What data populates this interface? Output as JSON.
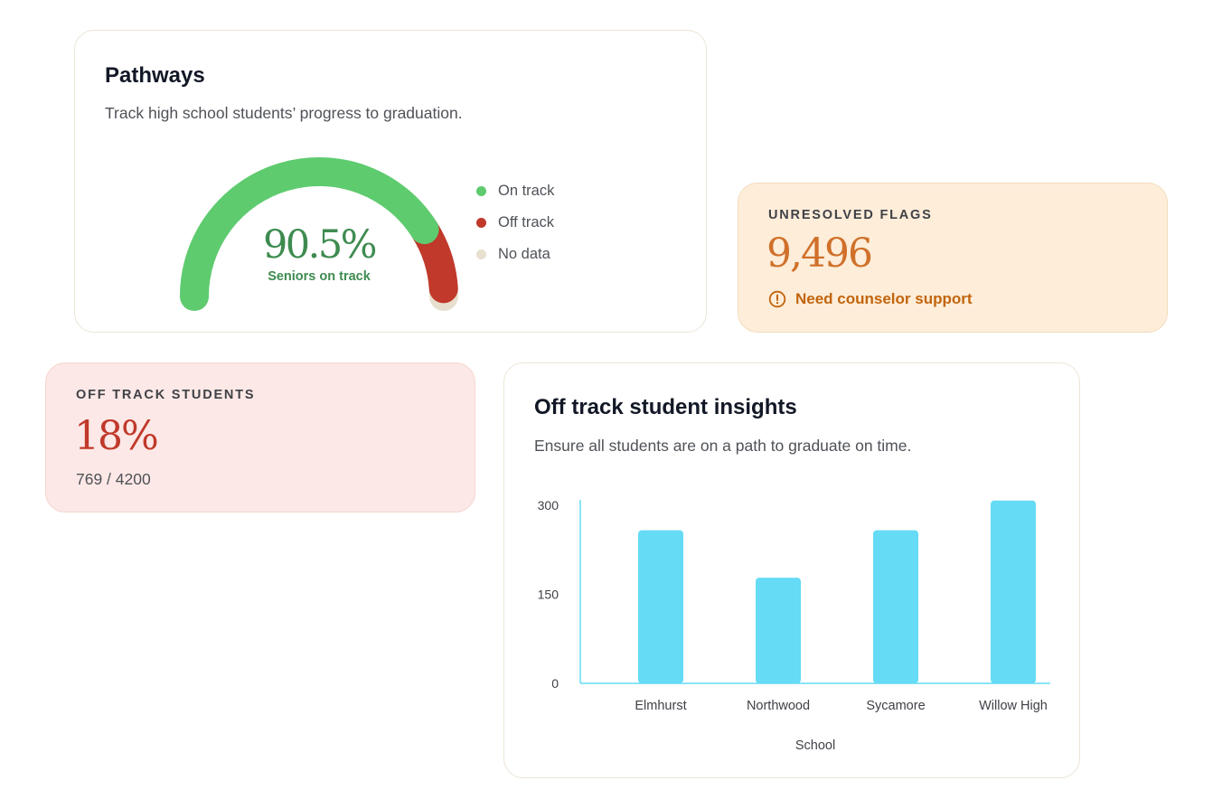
{
  "pathways": {
    "title": "Pathways",
    "subtitle": "Track high school students’ progress to graduation.",
    "gauge": {
      "value_label": "90.5%",
      "caption": "Seniors on track",
      "on_track_fraction": 0.905,
      "off_track_fraction": 0.075,
      "no_data_fraction": 0.02
    },
    "legend": [
      {
        "label": "On track",
        "color": "#5ecb6f"
      },
      {
        "label": "Off track",
        "color": "#c0392b"
      },
      {
        "label": "No data",
        "color": "#e8e0cf"
      }
    ]
  },
  "flags": {
    "kicker": "UNRESOLVED FLAGS",
    "value": "9,496",
    "note": "Need counselor support",
    "icon": "alert-circle-icon",
    "accent": "#c2640c",
    "value_color": "#d0702a"
  },
  "offtrack": {
    "kicker": "OFF TRACK STUDENTS",
    "value": "18%",
    "detail": "769 / 4200",
    "accent": "#c0392b"
  },
  "insights": {
    "title": "Off track student insights",
    "subtitle": "Ensure all students are on a path to graduate on time."
  },
  "chart_data": {
    "type": "bar",
    "categories": [
      "Elmhurst",
      "Northwood",
      "Sycamore",
      "Willow High"
    ],
    "values": [
      258,
      178,
      258,
      308
    ],
    "xlabel": "School",
    "ylabel": "",
    "ylim": [
      0,
      300
    ],
    "yticks": [
      "0",
      "150",
      "300"
    ],
    "bar_color": "#65dbf5",
    "grid": false
  }
}
